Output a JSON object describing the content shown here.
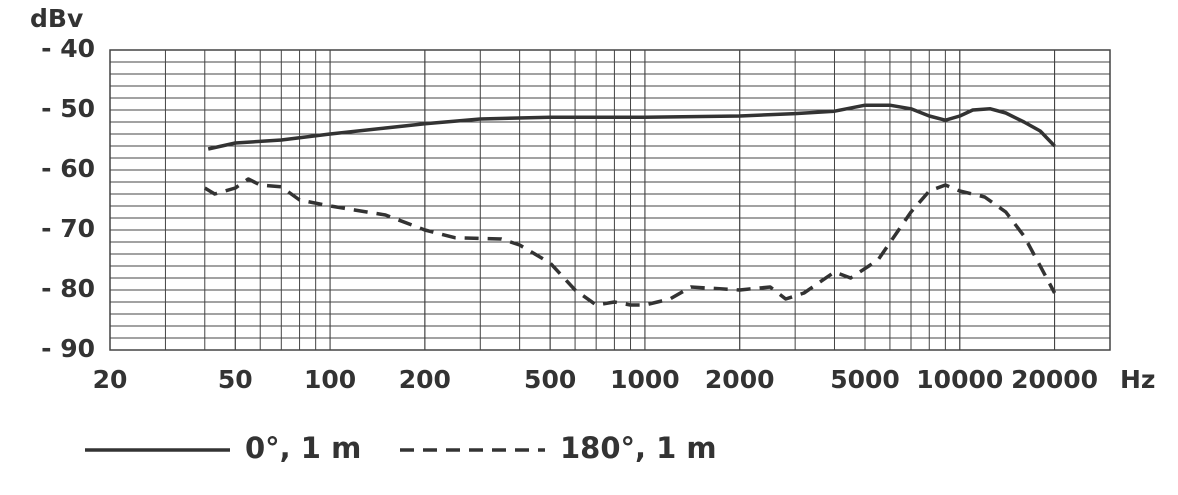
{
  "chart_data": {
    "type": "line",
    "ylabel": "dBv",
    "xlabel": "Hz",
    "log_x": true,
    "grid": true,
    "line_color": "#333333",
    "xlim": [
      20,
      30000
    ],
    "xticks": [
      20,
      50,
      100,
      200,
      500,
      1000,
      2000,
      5000,
      10000,
      20000
    ],
    "ylim": [
      -90,
      -40
    ],
    "yticks": [
      {
        "value": -40,
        "label": "- 40"
      },
      {
        "value": -50,
        "label": "- 50"
      },
      {
        "value": -60,
        "label": "- 60"
      },
      {
        "value": -70,
        "label": "- 70"
      },
      {
        "value": -80,
        "label": "- 80"
      },
      {
        "value": -90,
        "label": "- 90"
      }
    ],
    "series": [
      {
        "name": "0°, 1 m",
        "style": "solid",
        "color": "#333333",
        "x": [
          41,
          50,
          70,
          100,
          150,
          200,
          300,
          500,
          1000,
          2000,
          3000,
          4000,
          5000,
          6000,
          7000,
          8000,
          9000,
          10000,
          11000,
          12500,
          14000,
          16000,
          18000,
          20000
        ],
        "values": [
          -56.5,
          -55.5,
          -55,
          -54,
          -53,
          -52.3,
          -51.5,
          -51.2,
          -51.2,
          -51,
          -50.6,
          -50.2,
          -49.2,
          -49.2,
          -49.8,
          -51,
          -51.7,
          -51,
          -50,
          -49.8,
          -50.5,
          -52,
          -53.5,
          -56
        ]
      },
      {
        "name": "180°, 1 m",
        "style": "dashed",
        "color": "#333333",
        "x": [
          40,
          43,
          50,
          55,
          60,
          70,
          80,
          100,
          150,
          200,
          250,
          350,
          400,
          500,
          600,
          700,
          800,
          900,
          1000,
          1200,
          1400,
          2000,
          2500,
          2800,
          3200,
          4000,
          4500,
          5500,
          7000,
          8000,
          9000,
          10000,
          12000,
          14000,
          16000,
          18000,
          20000
        ],
        "values": [
          -63,
          -64,
          -63,
          -61.5,
          -62.5,
          -62.8,
          -65,
          -66,
          -67.5,
          -70,
          -71.3,
          -71.5,
          -72.5,
          -75.5,
          -80,
          -82.5,
          -82,
          -82.5,
          -82.5,
          -81.5,
          -79.5,
          -80,
          -79.5,
          -81.5,
          -80.5,
          -77,
          -78,
          -75,
          -67,
          -63.5,
          -62.5,
          -63.5,
          -64.5,
          -67,
          -71,
          -76,
          -80.5
        ]
      }
    ]
  }
}
